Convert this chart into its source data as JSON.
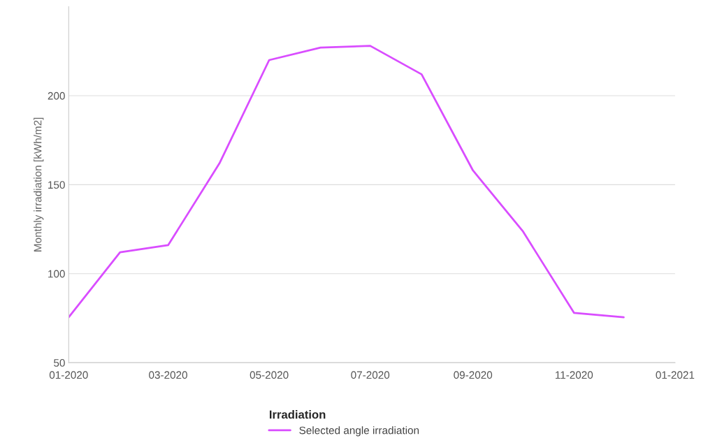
{
  "chart_data": {
    "type": "line",
    "ylabel": "Monthly irradiation [kWh/m2]",
    "legend_title": "Irradiation",
    "legend": "bottom",
    "grid": "y",
    "marker": "none",
    "line_style": "solid",
    "x": [
      "2020-01",
      "2020-02",
      "2020-03",
      "2020-04",
      "2020-05",
      "2020-06",
      "2020-07",
      "2020-08",
      "2020-09",
      "2020-10",
      "2020-11",
      "2020-12"
    ],
    "series": [
      {
        "name": "Selected angle irradiation",
        "color": "#d94dff",
        "values": [
          75.5,
          112,
          116,
          162,
          220,
          227,
          228,
          212,
          158,
          124,
          78,
          75.5
        ]
      }
    ],
    "xlim": [
      "2020-01",
      "2021-01"
    ],
    "xticks": [
      {
        "value": "2020-01",
        "label": "01-2020"
      },
      {
        "value": "2020-03",
        "label": "03-2020"
      },
      {
        "value": "2020-05",
        "label": "05-2020"
      },
      {
        "value": "2020-07",
        "label": "07-2020"
      },
      {
        "value": "2020-09",
        "label": "09-2020"
      },
      {
        "value": "2020-11",
        "label": "11-2020"
      },
      {
        "value": "2021-01",
        "label": "01-2021"
      }
    ],
    "ylim": [
      50,
      250
    ],
    "yticks": [
      50,
      100,
      150,
      200
    ]
  }
}
